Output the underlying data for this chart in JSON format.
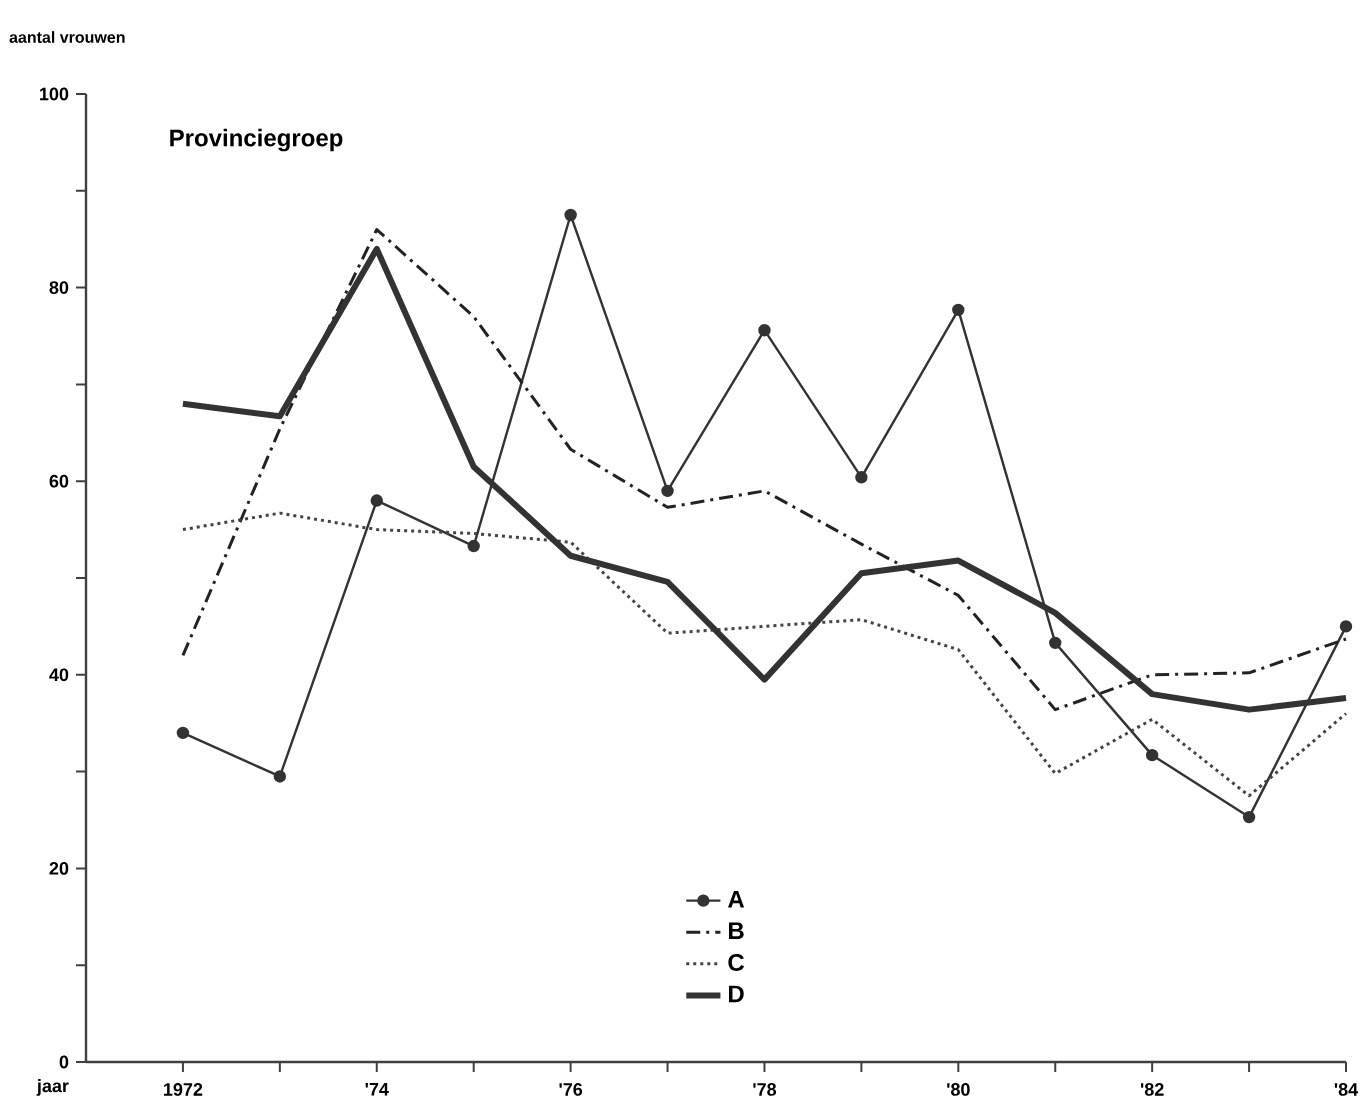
{
  "chart_data": {
    "type": "line",
    "title": "Provinciegroep",
    "ylabel": "aantal vrouwen",
    "xlabel": "jaar",
    "x": [
      1972,
      1973,
      1974,
      1975,
      1976,
      1977,
      1978,
      1979,
      1980,
      1981,
      1982,
      1983,
      1984
    ],
    "xlim": [
      1971,
      1984
    ],
    "xticks": [
      {
        "value": 1972,
        "label": "1972"
      },
      {
        "value": 1973,
        "label": null
      },
      {
        "value": 1974,
        "label": "'74"
      },
      {
        "value": 1975,
        "label": null
      },
      {
        "value": 1976,
        "label": "'76"
      },
      {
        "value": 1977,
        "label": null
      },
      {
        "value": 1978,
        "label": "'78"
      },
      {
        "value": 1979,
        "label": null
      },
      {
        "value": 1980,
        "label": "'80"
      },
      {
        "value": 1981,
        "label": null
      },
      {
        "value": 1982,
        "label": "'82"
      },
      {
        "value": 1983,
        "label": null
      },
      {
        "value": 1984,
        "label": "'84"
      }
    ],
    "ylim": [
      0,
      100
    ],
    "yticks": [
      0,
      {
        "value": 10,
        "label": null
      },
      20,
      {
        "value": 30,
        "label": null
      },
      40,
      {
        "value": 50,
        "label": null
      },
      60,
      {
        "value": 70,
        "label": null
      },
      80,
      {
        "value": 90,
        "label": null
      },
      100
    ],
    "grid": false,
    "legend": "bottom",
    "series": [
      {
        "name": "A",
        "color": "#333333",
        "marker": "circle",
        "line_style": "solid",
        "values": [
          34,
          29.5,
          58,
          53.3,
          87.5,
          59,
          75.6,
          60.4,
          77.7,
          43.3,
          31.7,
          25.3,
          45
        ]
      },
      {
        "name": "B",
        "color": "#222222",
        "marker": "none",
        "line_style": "dashdot",
        "values": [
          42,
          65.4,
          86,
          77,
          63.3,
          57.3,
          59,
          53.5,
          48.2,
          36.4,
          40,
          40.2,
          43.7
        ]
      },
      {
        "name": "C",
        "color": "#444444",
        "marker": "none",
        "line_style": "dotted",
        "values": [
          55,
          56.7,
          55,
          54.6,
          53.7,
          44.3,
          45,
          45.7,
          42.6,
          29.8,
          35.4,
          27.5,
          36
        ]
      },
      {
        "name": "D",
        "color": "#333333",
        "marker": "none",
        "line_style": "solid",
        "values": [
          68,
          66.7,
          84,
          61.5,
          52.3,
          49.6,
          39.5,
          50.5,
          51.8,
          46.4,
          38,
          36.4,
          37.6
        ]
      }
    ]
  }
}
